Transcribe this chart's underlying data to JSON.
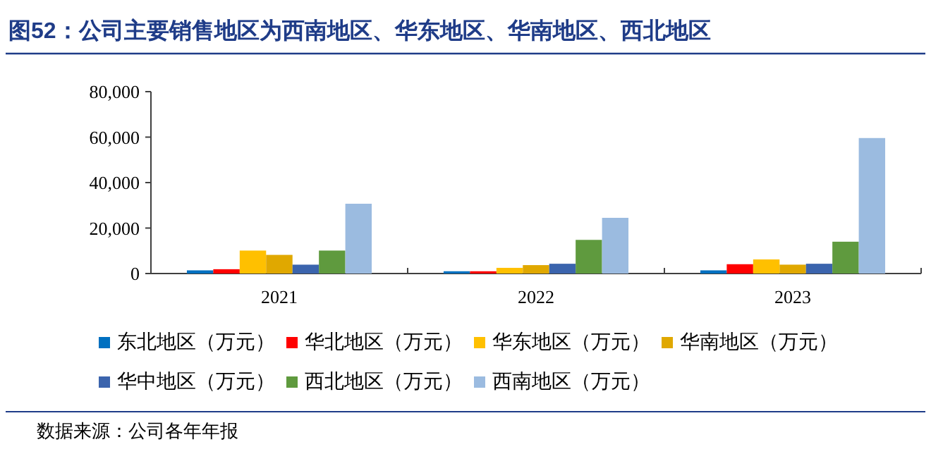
{
  "chart_data": {
    "type": "bar",
    "title": "图52：公司主要销售地区为西南地区、华东地区、华南地区、西北地区",
    "categories": [
      "2021",
      "2022",
      "2023"
    ],
    "series": [
      {
        "name": "东北地区（万元）",
        "color": "#0070c0",
        "values": [
          1400,
          1000,
          1400
        ]
      },
      {
        "name": "华北地区（万元）",
        "color": "#ff0000",
        "values": [
          1900,
          1000,
          4100
        ]
      },
      {
        "name": "华东地区（万元）",
        "color": "#ffc000",
        "values": [
          10100,
          2500,
          6200
        ]
      },
      {
        "name": "华南地区（万元）",
        "color": "#e0a800",
        "values": [
          8200,
          3700,
          3900
        ]
      },
      {
        "name": "华中地区（万元）",
        "color": "#3b64ad",
        "values": [
          3900,
          4300,
          4300
        ]
      },
      {
        "name": "西北地区（万元）",
        "color": "#5f9a3e",
        "values": [
          10100,
          14800,
          14000
        ]
      },
      {
        "name": "西南地区（万元）",
        "color": "#9bbbe0",
        "values": [
          30700,
          24500,
          59600
        ]
      }
    ],
    "ylim": [
      0,
      80000
    ],
    "yticks": [
      0,
      {
        "value": 20000,
        "label": "20,000"
      },
      {
        "value": 40000,
        "label": "40,000"
      },
      {
        "value": 60000,
        "label": "60,000"
      },
      {
        "value": 80000,
        "label": "80,000"
      }
    ],
    "legend": "bottom",
    "annotations": [
      "数据来源：公司各年年报"
    ]
  }
}
